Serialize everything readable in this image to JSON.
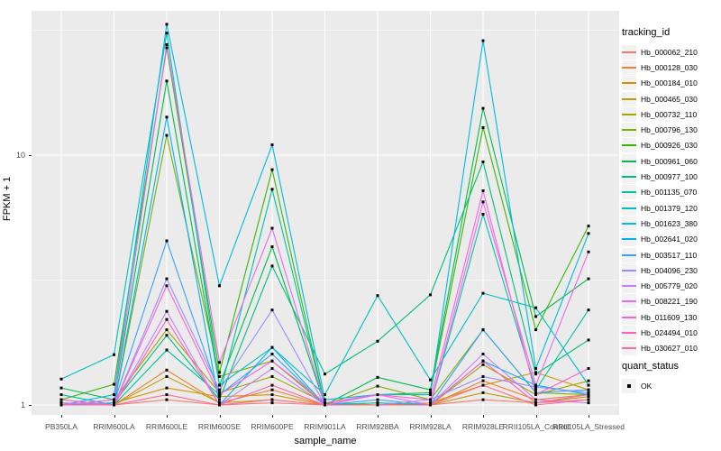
{
  "plot": {
    "x_axis_title": "sample_name",
    "y_axis_title": "FPKM + 1",
    "legend_title": "tracking_id",
    "legend2_title": "quant_status",
    "legend2_item": "OK",
    "panel_bg": "#EBEBEB",
    "gridline_color": "#FFFFFF",
    "point_color": "#000000",
    "tick_label_color": "#4D4D4D"
  },
  "chart_data": {
    "type": "line",
    "title": "",
    "xlabel": "sample_name",
    "ylabel": "FPKM + 1",
    "y_scale": "log10",
    "ylim": [
      1,
      38
    ],
    "y_major_ticks": [
      1,
      10
    ],
    "y_minor_gridlines": [
      3.1623,
      31.623
    ],
    "grid": true,
    "legend_position": "right",
    "marker": "black-square",
    "marker_legend": {
      "title": "quant_status",
      "label": "OK"
    },
    "categories": [
      "PB350LA",
      "RRIM600LA",
      "RRIM600LE",
      "RRIM600SE",
      "RRIM600PE",
      "RRIM901LA",
      "RRIM928BA",
      "RRIM928LA",
      "RRIM928LE",
      "RRII105LA_Control",
      "RRII105LA_Stressed"
    ],
    "series": [
      {
        "name": "Hb_000062_210",
        "color": "#F8766D",
        "values": [
          1.0,
          1.0,
          1.05,
          1.0,
          1.02,
          1.0,
          1.0,
          1.0,
          1.05,
          1.02,
          1.05
        ]
      },
      {
        "name": "Hb_000128_030",
        "color": "#EA8331",
        "values": [
          1.02,
          1.0,
          1.38,
          1.02,
          1.15,
          1.0,
          1.02,
          1.0,
          1.25,
          1.05,
          1.1
        ]
      },
      {
        "name": "Hb_000184_010",
        "color": "#D89000",
        "values": [
          1.0,
          1.02,
          1.17,
          1.08,
          1.1,
          1.0,
          1.0,
          1.02,
          1.2,
          1.35,
          1.15
        ]
      },
      {
        "name": "Hb_000465_030",
        "color": "#C09B00",
        "values": [
          1.05,
          1.0,
          1.3,
          1.02,
          1.05,
          1.0,
          1.0,
          1.0,
          1.12,
          1.02,
          1.08
        ]
      },
      {
        "name": "Hb_000732_110",
        "color": "#A3A500",
        "values": [
          1.0,
          1.05,
          2.0,
          1.12,
          1.3,
          1.02,
          1.0,
          1.0,
          1.45,
          1.1,
          1.25
        ]
      },
      {
        "name": "Hb_000796_130",
        "color": "#7CAE00",
        "values": [
          1.02,
          1.0,
          12.0,
          1.3,
          1.5,
          1.0,
          1.19,
          1.05,
          2.0,
          1.12,
          1.1
        ]
      },
      {
        "name": "Hb_000926_030",
        "color": "#39B600",
        "values": [
          1.05,
          1.21,
          26.9,
          1.35,
          8.75,
          1.0,
          1.1,
          1.12,
          12.9,
          2.0,
          5.2
        ]
      },
      {
        "name": "Hb_000961_060",
        "color": "#00BB4E",
        "values": [
          1.17,
          1.05,
          19.8,
          1.2,
          4.3,
          1.0,
          1.29,
          1.15,
          15.4,
          2.26,
          3.2
        ]
      },
      {
        "name": "Hb_000977_100",
        "color": "#00BF7D",
        "values": [
          1.0,
          1.02,
          1.9,
          1.05,
          3.6,
          1.33,
          1.8,
          2.76,
          9.4,
          1.33,
          1.82
        ]
      },
      {
        "name": "Hb_001135_070",
        "color": "#00C1A3",
        "values": [
          1.1,
          1.0,
          1.66,
          1.1,
          7.3,
          1.0,
          1.02,
          1.0,
          5.8,
          1.15,
          2.4
        ]
      },
      {
        "name": "Hb_001379_120",
        "color": "#00BFC4",
        "values": [
          1.27,
          1.59,
          30.8,
          1.2,
          1.7,
          1.1,
          2.74,
          1.26,
          2.8,
          2.45,
          1.2
        ]
      },
      {
        "name": "Hb_001623_380",
        "color": "#00BAE0",
        "values": [
          1.0,
          1.1,
          33.4,
          3.0,
          11.0,
          1.05,
          1.1,
          1.1,
          28.7,
          1.4,
          4.86
        ]
      },
      {
        "name": "Hb_002641_020",
        "color": "#00B0F6",
        "values": [
          1.0,
          1.0,
          14.2,
          1.0,
          1.7,
          1.0,
          1.0,
          1.0,
          1.5,
          1.2,
          1.1
        ]
      },
      {
        "name": "Hb_003517_110",
        "color": "#35A2FF",
        "values": [
          1.0,
          1.02,
          4.54,
          1.1,
          1.6,
          1.0,
          1.05,
          1.0,
          2.0,
          1.12,
          1.15
        ]
      },
      {
        "name": "Hb_004096_230",
        "color": "#9590FF",
        "values": [
          1.0,
          1.0,
          3.2,
          1.15,
          2.4,
          1.0,
          1.0,
          1.05,
          1.3,
          1.18,
          1.12
        ]
      },
      {
        "name": "Hb_005779_020",
        "color": "#C77CFF",
        "values": [
          1.02,
          1.0,
          2.37,
          1.0,
          1.4,
          1.0,
          1.0,
          1.0,
          1.6,
          1.05,
          1.02
        ]
      },
      {
        "name": "Hb_008221_190",
        "color": "#E76BF3",
        "values": [
          1.0,
          1.05,
          27.7,
          1.48,
          5.1,
          1.0,
          1.1,
          1.0,
          6.5,
          1.2,
          4.1
        ]
      },
      {
        "name": "Hb_011609_130",
        "color": "#FA62DB",
        "values": [
          1.05,
          1.0,
          3.0,
          1.1,
          1.5,
          1.02,
          1.1,
          1.05,
          7.2,
          1.1,
          1.4
        ]
      },
      {
        "name": "Hb_024494_010",
        "color": "#FF62BC",
        "values": [
          1.0,
          1.0,
          2.2,
          1.0,
          1.2,
          1.0,
          1.0,
          1.0,
          1.5,
          1.02,
          1.1
        ]
      },
      {
        "name": "Hb_030627_010",
        "color": "#FF6A98",
        "values": [
          1.0,
          1.0,
          1.1,
          1.0,
          1.05,
          1.0,
          1.0,
          1.0,
          1.2,
          1.0,
          1.05
        ]
      }
    ]
  }
}
